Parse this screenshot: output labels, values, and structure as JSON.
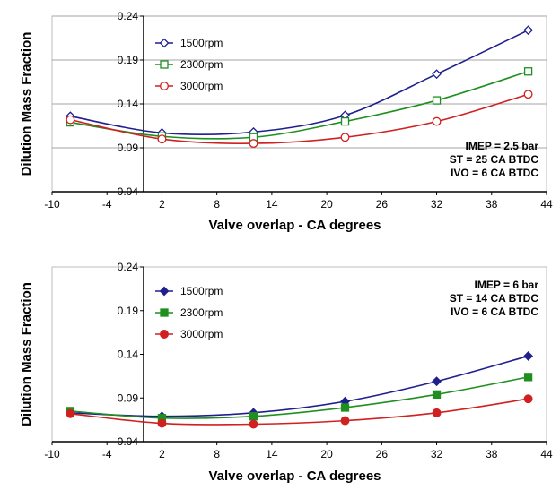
{
  "chart_data": [
    {
      "type": "line",
      "marker_style": "hollow",
      "xlabel": "Valve overlap  -  CA degrees",
      "ylabel": "Dilution Mass Fraction",
      "xlim": [
        -10,
        44
      ],
      "ylim": [
        0.04,
        0.24
      ],
      "xticks": [
        "-10",
        "-4",
        "2",
        "8",
        "14",
        "20",
        "26",
        "32",
        "38",
        "44"
      ],
      "yticks": [
        "0.04",
        "0.09",
        "0.14",
        "0.19",
        "0.24"
      ],
      "grid": "horizontal",
      "legend_position": "top-left",
      "x": [
        -8,
        2,
        12,
        22,
        32,
        42
      ],
      "series": [
        {
          "name": "1500rpm",
          "color": "#1f1f8f",
          "marker": "diamond",
          "values": [
            0.126,
            0.107,
            0.108,
            0.127,
            0.174,
            0.224
          ]
        },
        {
          "name": "2300rpm",
          "color": "#1f8f1f",
          "marker": "square",
          "values": [
            0.119,
            0.103,
            0.102,
            0.12,
            0.144,
            0.177
          ]
        },
        {
          "name": "3000rpm",
          "color": "#d02020",
          "marker": "circle",
          "values": [
            0.122,
            0.1,
            0.095,
            0.102,
            0.12,
            0.151
          ]
        }
      ],
      "annotations": [
        "IMEP = 2.5 bar",
        "ST = 25 CA BTDC",
        "IVO = 6 CA BTDC"
      ]
    },
    {
      "type": "line",
      "marker_style": "filled",
      "xlabel": "Valve overlap  -  CA degrees",
      "ylabel": "Dilution Mass Fraction",
      "xlim": [
        -10,
        44
      ],
      "ylim": [
        0.04,
        0.24
      ],
      "xticks": [
        "-10",
        "-4",
        "2",
        "8",
        "14",
        "20",
        "26",
        "32",
        "38",
        "44"
      ],
      "yticks": [
        "0.04",
        "0.09",
        "0.14",
        "0.19",
        "0.24"
      ],
      "grid": "none",
      "legend_position": "top-left",
      "x": [
        -8,
        2,
        12,
        22,
        32,
        42
      ],
      "series": [
        {
          "name": "1500rpm",
          "color": "#1f1f8f",
          "marker": "diamond",
          "values": [
            0.073,
            0.069,
            0.073,
            0.086,
            0.109,
            0.138
          ]
        },
        {
          "name": "2300rpm",
          "color": "#1f8f1f",
          "marker": "square",
          "values": [
            0.075,
            0.067,
            0.069,
            0.079,
            0.094,
            0.114
          ]
        },
        {
          "name": "3000rpm",
          "color": "#d02020",
          "marker": "circle",
          "values": [
            0.072,
            0.061,
            0.06,
            0.064,
            0.073,
            0.089
          ]
        }
      ],
      "annotations": [
        "IMEP = 6 bar",
        "ST = 14 CA BTDC",
        "IVO = 6 CA BTDC"
      ]
    }
  ]
}
